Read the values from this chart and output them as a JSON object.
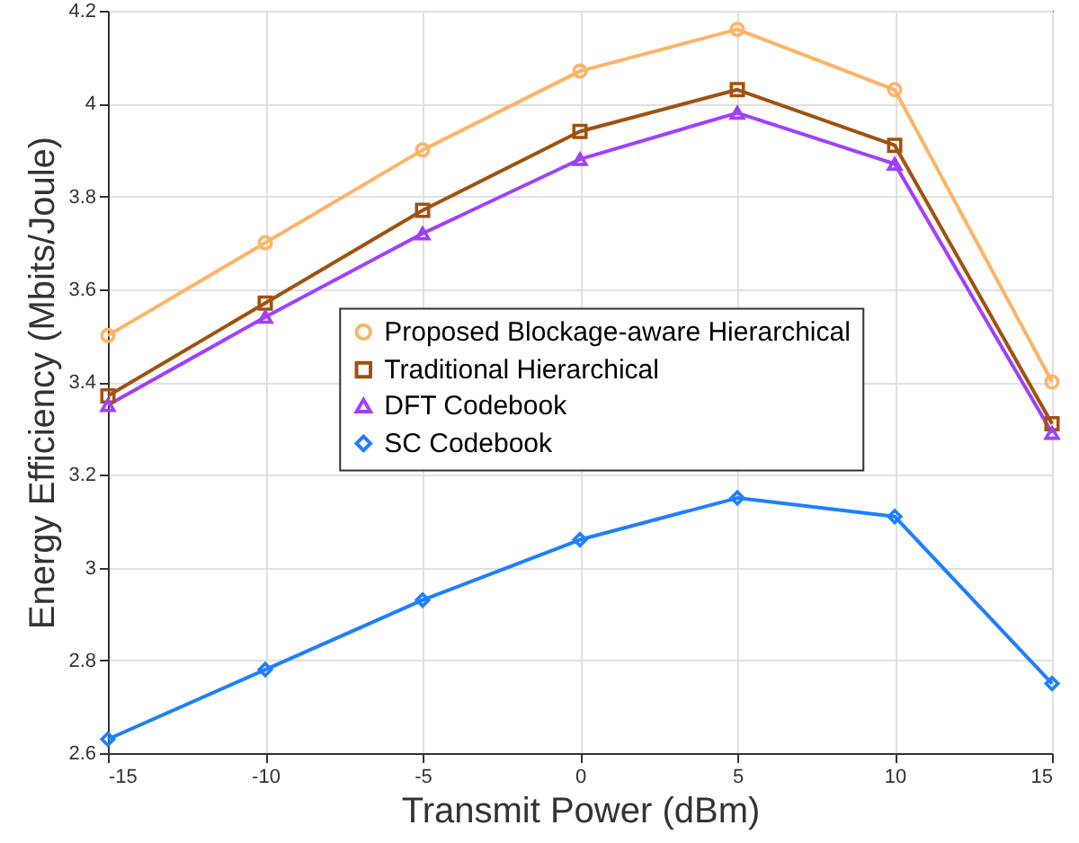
{
  "chart_data": {
    "type": "line",
    "xlabel": "Transmit Power (dBm)",
    "ylabel": "Energy Efficiency (Mbits/Joule)",
    "x": [
      -15,
      -10,
      -5,
      0,
      5,
      10,
      15
    ],
    "series": [
      {
        "name": "Proposed Blockage-aware Hierarchical",
        "color": "#ffb366",
        "marker": "circle",
        "values": [
          3.5,
          3.7,
          3.9,
          4.07,
          4.16,
          4.03,
          3.4
        ]
      },
      {
        "name": "Traditional Hierarchical",
        "color": "#a0520f",
        "marker": "square",
        "values": [
          3.37,
          3.57,
          3.77,
          3.94,
          4.03,
          3.91,
          3.31
        ]
      },
      {
        "name": "DFT Codebook",
        "color": "#a040ff",
        "marker": "triangle",
        "values": [
          3.35,
          3.54,
          3.72,
          3.88,
          3.98,
          3.87,
          3.29
        ]
      },
      {
        "name": "SC Codebook",
        "color": "#1f7fff",
        "marker": "diamond",
        "values": [
          2.63,
          2.78,
          2.93,
          3.06,
          3.15,
          3.11,
          2.75
        ]
      }
    ],
    "xlim": [
      -15,
      15
    ],
    "xticks": [
      -15,
      -10,
      -5,
      0,
      5,
      10,
      15
    ],
    "ylim": [
      2.6,
      4.2
    ],
    "yticks": [
      2.6,
      2.8,
      3,
      3.2,
      3.4,
      3.6,
      3.8,
      4,
      4.2
    ],
    "grid": true,
    "legend": "center",
    "line_style": "solid"
  }
}
